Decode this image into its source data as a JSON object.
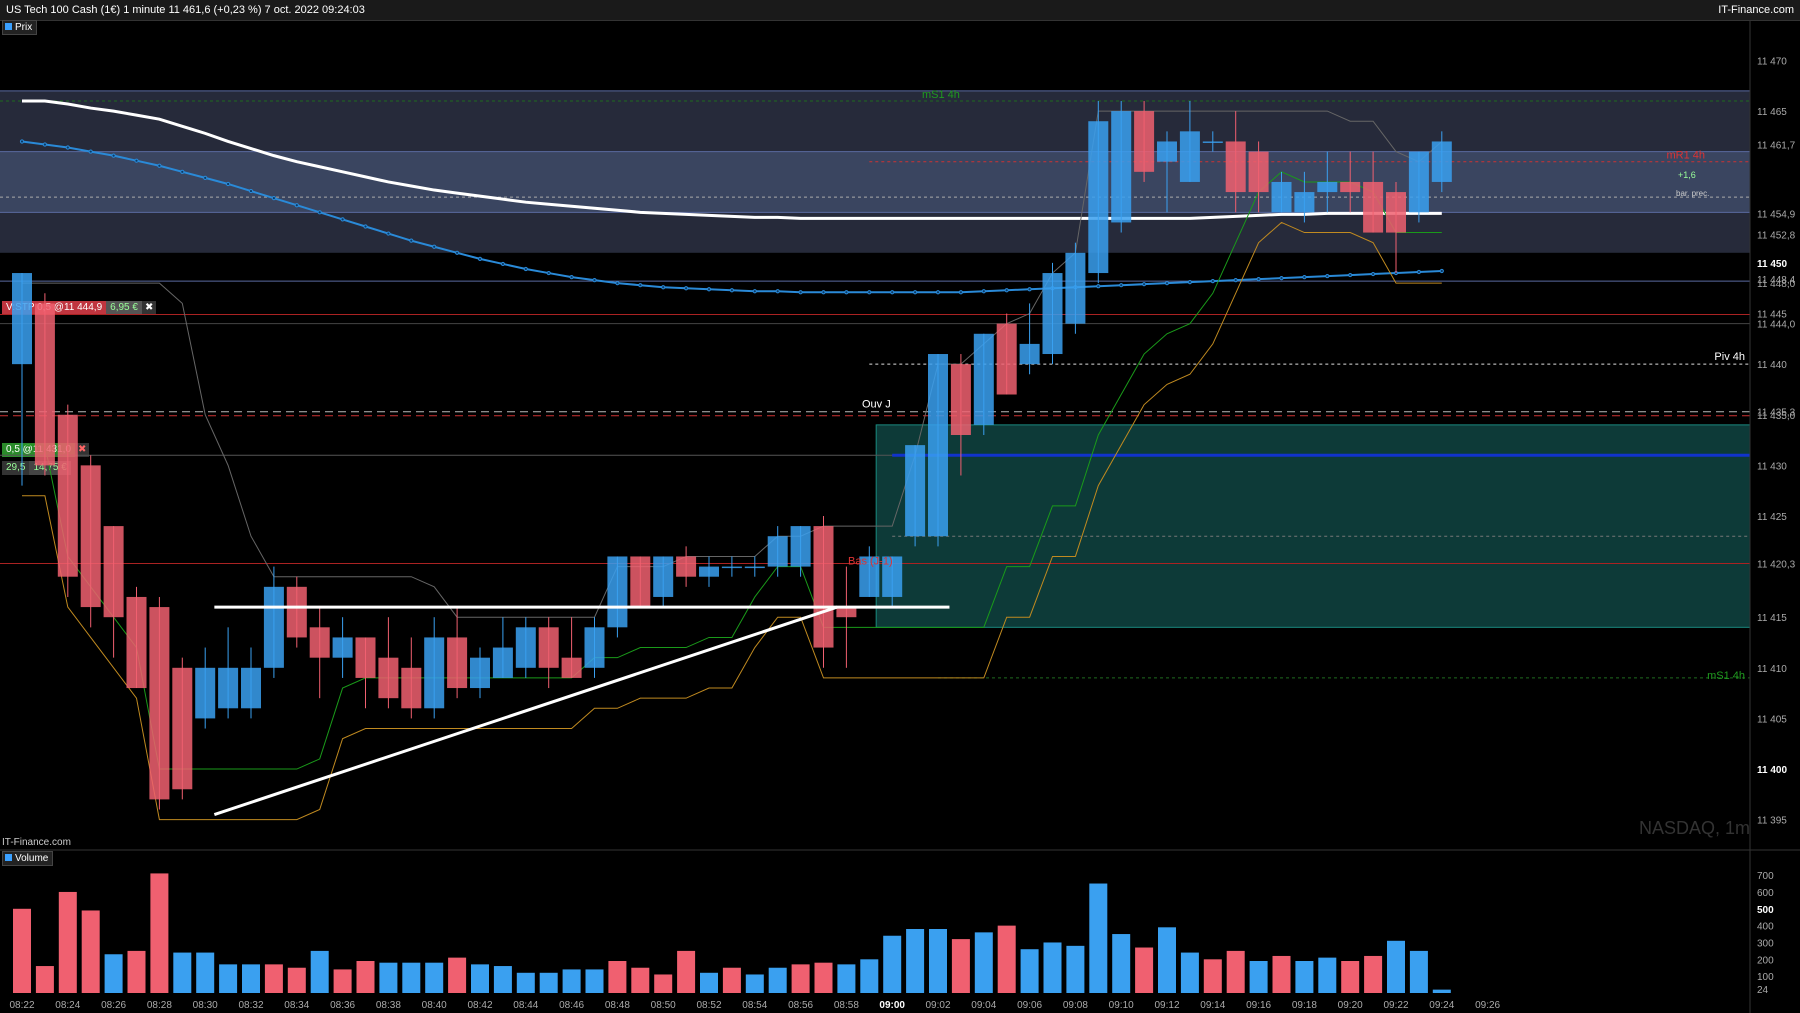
{
  "header": {
    "title": "US Tech 100 Cash (1€) 1 minute 11 461,6 (+0,23 %) 7 oct. 2022 09:24:03",
    "brand": "IT-Finance.com"
  },
  "price_panel": {
    "label": "Prix"
  },
  "volume_panel": {
    "label": "Volume"
  },
  "watermark": "NASDAQ, 1m",
  "footer_brand": "IT-Finance.com",
  "orders": {
    "stop": {
      "label": "V:STP 0,5 @11 444,9",
      "value": "6,95 €"
    },
    "entry": {
      "label": "0,5 @11 431,0",
      "sub1": "29,5",
      "sub2": "14,75 €"
    }
  },
  "annotations": {
    "ms1_top": "mS1 4h",
    "mr1": "mR1 4h",
    "piv": "Piv 4h",
    "ouv": "Ouv J",
    "bas": "Bas (J-1)",
    "ms1_bottom": "mS1 4h",
    "change": "+1,6",
    "prev": "bar. prec."
  },
  "colors": {
    "up": "#3aa0f0",
    "down": "#f06070",
    "band": "#3a4560",
    "teal": "#0d3a38",
    "grid": "#1c1c1c"
  },
  "chart_data": {
    "type": "candlestick",
    "ylim": [
      11392,
      11474
    ],
    "y_ticks": [
      "11 395",
      "11 400",
      "11 405",
      "11 410",
      "11 415",
      "11 420,3",
      "11 425",
      "11 430",
      "11 435,0",
      "11 435,3",
      "11 440",
      "11 444,0",
      "11 445",
      "11 448,0",
      "11 448,4",
      "11 450",
      "11 452,8",
      "11 454,9",
      "11 461,7",
      "11 465",
      "11 470"
    ],
    "y_tick_values": [
      11395,
      11400,
      11405,
      11410,
      11415,
      11420.3,
      11425,
      11430,
      11435.0,
      11435.3,
      11440,
      11444.0,
      11445,
      11448.0,
      11448.4,
      11450,
      11452.8,
      11454.9,
      11461.7,
      11465,
      11470
    ],
    "x_ticks": [
      "08:22",
      "08:24",
      "08:26",
      "08:28",
      "08:30",
      "08:32",
      "08:34",
      "08:36",
      "08:38",
      "08:40",
      "08:42",
      "08:44",
      "08:46",
      "08:48",
      "08:50",
      "08:52",
      "08:54",
      "08:56",
      "08:58",
      "09:00",
      "09:02",
      "09:04",
      "09:06",
      "09:08",
      "09:10",
      "09:12",
      "09:14",
      "09:16",
      "09:18",
      "09:20",
      "09:22",
      "09:24",
      "09:26"
    ],
    "candles": [
      {
        "t": "08:22",
        "o": 11440,
        "h": 11449,
        "l": 11428,
        "c": 11449
      },
      {
        "t": "08:23",
        "o": 11446,
        "h": 11447,
        "l": 11429,
        "c": 11430
      },
      {
        "t": "08:24",
        "o": 11435,
        "h": 11436,
        "l": 11417,
        "c": 11419
      },
      {
        "t": "08:25",
        "o": 11430,
        "h": 11431,
        "l": 11414,
        "c": 11416
      },
      {
        "t": "08:26",
        "o": 11424,
        "h": 11424,
        "l": 11411,
        "c": 11415
      },
      {
        "t": "08:27",
        "o": 11417,
        "h": 11418,
        "l": 11408,
        "c": 11408
      },
      {
        "t": "08:28",
        "o": 11416,
        "h": 11417,
        "l": 11396,
        "c": 11397
      },
      {
        "t": "08:29",
        "o": 11410,
        "h": 11411,
        "l": 11397,
        "c": 11398
      },
      {
        "t": "08:30",
        "o": 11405,
        "h": 11412,
        "l": 11404,
        "c": 11410
      },
      {
        "t": "08:31",
        "o": 11406,
        "h": 11414,
        "l": 11405,
        "c": 11410
      },
      {
        "t": "08:32",
        "o": 11406,
        "h": 11412,
        "l": 11405,
        "c": 11410
      },
      {
        "t": "08:33",
        "o": 11410,
        "h": 11420,
        "l": 11409,
        "c": 11418
      },
      {
        "t": "08:34",
        "o": 11418,
        "h": 11419,
        "l": 11412,
        "c": 11413
      },
      {
        "t": "08:35",
        "o": 11414,
        "h": 11416,
        "l": 11407,
        "c": 11411
      },
      {
        "t": "08:36",
        "o": 11411,
        "h": 11415,
        "l": 11409,
        "c": 11413
      },
      {
        "t": "08:37",
        "o": 11413,
        "h": 11413,
        "l": 11406,
        "c": 11409
      },
      {
        "t": "08:38",
        "o": 11411,
        "h": 11415,
        "l": 11406,
        "c": 11407
      },
      {
        "t": "08:39",
        "o": 11410,
        "h": 11413,
        "l": 11405,
        "c": 11406
      },
      {
        "t": "08:40",
        "o": 11406,
        "h": 11415,
        "l": 11405,
        "c": 11413
      },
      {
        "t": "08:41",
        "o": 11413,
        "h": 11416,
        "l": 11407,
        "c": 11408
      },
      {
        "t": "08:42",
        "o": 11408,
        "h": 11412,
        "l": 11407,
        "c": 11411
      },
      {
        "t": "08:43",
        "o": 11409,
        "h": 11415,
        "l": 11409,
        "c": 11412
      },
      {
        "t": "08:44",
        "o": 11410,
        "h": 11415,
        "l": 11409,
        "c": 11414
      },
      {
        "t": "08:45",
        "o": 11414,
        "h": 11415,
        "l": 11408,
        "c": 11410
      },
      {
        "t": "08:46",
        "o": 11411,
        "h": 11415,
        "l": 11409,
        "c": 11409
      },
      {
        "t": "08:47",
        "o": 11410,
        "h": 11415,
        "l": 11409,
        "c": 11414
      },
      {
        "t": "08:48",
        "o": 11414,
        "h": 11421,
        "l": 11413,
        "c": 11421
      },
      {
        "t": "08:49",
        "o": 11421,
        "h": 11421,
        "l": 11416,
        "c": 11416
      },
      {
        "t": "08:50",
        "o": 11417,
        "h": 11421,
        "l": 11416,
        "c": 11421
      },
      {
        "t": "08:51",
        "o": 11421,
        "h": 11422,
        "l": 11418,
        "c": 11419
      },
      {
        "t": "08:52",
        "o": 11419,
        "h": 11421,
        "l": 11418,
        "c": 11420
      },
      {
        "t": "08:53",
        "o": 11420,
        "h": 11421,
        "l": 11419,
        "c": 11420
      },
      {
        "t": "08:54",
        "o": 11420,
        "h": 11421,
        "l": 11419,
        "c": 11420
      },
      {
        "t": "08:55",
        "o": 11420,
        "h": 11424,
        "l": 11419,
        "c": 11423
      },
      {
        "t": "08:56",
        "o": 11420,
        "h": 11424,
        "l": 11419,
        "c": 11424
      },
      {
        "t": "08:57",
        "o": 11424,
        "h": 11425,
        "l": 11410,
        "c": 11412
      },
      {
        "t": "08:58",
        "o": 11416,
        "h": 11420,
        "l": 11410,
        "c": 11415
      },
      {
        "t": "08:59",
        "o": 11417,
        "h": 11422,
        "l": 11417,
        "c": 11421
      },
      {
        "t": "09:00",
        "o": 11417,
        "h": 11421,
        "l": 11416,
        "c": 11421
      },
      {
        "t": "09:01",
        "o": 11423,
        "h": 11432,
        "l": 11422,
        "c": 11432
      },
      {
        "t": "09:02",
        "o": 11423,
        "h": 11441,
        "l": 11422,
        "c": 11441
      },
      {
        "t": "09:03",
        "o": 11440,
        "h": 11441,
        "l": 11429,
        "c": 11433
      },
      {
        "t": "09:04",
        "o": 11434,
        "h": 11443,
        "l": 11433,
        "c": 11443
      },
      {
        "t": "09:05",
        "o": 11444,
        "h": 11445,
        "l": 11437,
        "c": 11437
      },
      {
        "t": "09:06",
        "o": 11440,
        "h": 11446,
        "l": 11439,
        "c": 11442
      },
      {
        "t": "09:07",
        "o": 11441,
        "h": 11450,
        "l": 11440,
        "c": 11449
      },
      {
        "t": "09:08",
        "o": 11444,
        "h": 11452,
        "l": 11443,
        "c": 11451
      },
      {
        "t": "09:09",
        "o": 11449,
        "h": 11466,
        "l": 11448,
        "c": 11464
      },
      {
        "t": "09:10",
        "o": 11454,
        "h": 11466,
        "l": 11453,
        "c": 11465
      },
      {
        "t": "09:11",
        "o": 11465,
        "h": 11466,
        "l": 11458,
        "c": 11459
      },
      {
        "t": "09:12",
        "o": 11460,
        "h": 11463,
        "l": 11455,
        "c": 11462
      },
      {
        "t": "09:13",
        "o": 11458,
        "h": 11466,
        "l": 11458,
        "c": 11463
      },
      {
        "t": "09:14",
        "o": 11462,
        "h": 11463,
        "l": 11461,
        "c": 11462
      },
      {
        "t": "09:15",
        "o": 11462,
        "h": 11465,
        "l": 11455,
        "c": 11457
      },
      {
        "t": "09:16",
        "o": 11461,
        "h": 11462,
        "l": 11455,
        "c": 11457
      },
      {
        "t": "09:17",
        "o": 11455,
        "h": 11459,
        "l": 11455,
        "c": 11458
      },
      {
        "t": "09:18",
        "o": 11455,
        "h": 11459,
        "l": 11454,
        "c": 11457
      },
      {
        "t": "09:19",
        "o": 11457,
        "h": 11461,
        "l": 11455,
        "c": 11458
      },
      {
        "t": "09:20",
        "o": 11458,
        "h": 11461,
        "l": 11455,
        "c": 11457
      },
      {
        "t": "09:21",
        "o": 11458,
        "h": 11461,
        "l": 11453,
        "c": 11453
      },
      {
        "t": "09:22",
        "o": 11457,
        "h": 11458,
        "l": 11449,
        "c": 11453
      },
      {
        "t": "09:23",
        "o": 11455,
        "h": 11461,
        "l": 11454,
        "c": 11461
      },
      {
        "t": "09:24",
        "o": 11458,
        "h": 11463,
        "l": 11457,
        "c": 11462
      }
    ],
    "volume": {
      "ylim": [
        0,
        760
      ],
      "y_ticks": [
        "24",
        "100",
        "200",
        "300",
        "400",
        "500",
        "600",
        "700"
      ],
      "y_tick_values": [
        24,
        100,
        200,
        300,
        400,
        500,
        600,
        700
      ],
      "values": [
        500,
        160,
        600,
        490,
        230,
        250,
        710,
        240,
        240,
        170,
        170,
        170,
        150,
        250,
        140,
        190,
        180,
        180,
        180,
        210,
        170,
        160,
        120,
        120,
        140,
        140,
        190,
        150,
        110,
        250,
        120,
        150,
        110,
        150,
        170,
        180,
        170,
        200,
        340,
        380,
        380,
        320,
        360,
        400,
        260,
        300,
        280,
        650,
        350,
        270,
        390,
        240,
        200,
        250,
        190,
        220,
        190,
        210,
        190,
        220,
        310,
        250,
        20
      ],
      "directions": [
        "down",
        "down",
        "down",
        "down",
        "up",
        "down",
        "down",
        "up",
        "up",
        "up",
        "up",
        "down",
        "down",
        "up",
        "down",
        "down",
        "up",
        "up",
        "up",
        "down",
        "up",
        "up",
        "up",
        "up",
        "up",
        "up",
        "down",
        "down",
        "down",
        "down",
        "up",
        "down",
        "up",
        "up",
        "down",
        "down",
        "up",
        "up",
        "up",
        "up",
        "up",
        "down",
        "up",
        "down",
        "up",
        "up",
        "up",
        "up",
        "up",
        "down",
        "up",
        "up",
        "down",
        "down",
        "up",
        "down",
        "up",
        "up",
        "down",
        "down",
        "up",
        "up",
        "up"
      ]
    },
    "series": [
      {
        "name": "",
        "color": "#ffffff",
        "values": [
          11466,
          11466,
          11465.7,
          11465.3,
          11465,
          11464.6,
          11464.2,
          11463.5,
          11462.8,
          11462,
          11461.3,
          11460.6,
          11460,
          11459.5,
          11459,
          11458.5,
          11458,
          11457.6,
          11457.2,
          11456.9,
          11456.6,
          11456.3,
          11456,
          11455.8,
          11455.6,
          11455.4,
          11455.2,
          11455,
          11454.9,
          11454.8,
          11454.7,
          11454.6,
          11454.5,
          11454.5,
          11454.4,
          11454.4,
          11454.4,
          11454.4,
          11454.4,
          11454.4,
          11454.4,
          11454.4,
          11454.4,
          11454.4,
          11454.4,
          11454.4,
          11454.4,
          11454.4,
          11454.4,
          11454.4,
          11454.4,
          11454.4,
          11454.5,
          11454.6,
          11454.7,
          11454.8,
          11454.8,
          11454.9,
          11454.9,
          11454.9,
          11454.9,
          11454.9,
          11454.9
        ]
      },
      {
        "name": "",
        "color": "#2a8ad8",
        "values": [
          11462,
          11461.7,
          11461.4,
          11461,
          11460.6,
          11460.1,
          11459.6,
          11459,
          11458.4,
          11457.8,
          11457.1,
          11456.4,
          11455.7,
          11455,
          11454.3,
          11453.6,
          11452.9,
          11452.2,
          11451.6,
          11451,
          11450.4,
          11449.9,
          11449.4,
          11449,
          11448.6,
          11448.3,
          11448,
          11447.8,
          11447.6,
          11447.5,
          11447.4,
          11447.3,
          11447.2,
          11447.2,
          11447.1,
          11447.1,
          11447.1,
          11447.1,
          11447.1,
          11447.1,
          11447.1,
          11447.1,
          11447.2,
          11447.3,
          11447.4,
          11447.5,
          11447.6,
          11447.7,
          11447.8,
          11447.9,
          11448,
          11448.1,
          11448.2,
          11448.3,
          11448.4,
          11448.5,
          11448.6,
          11448.7,
          11448.8,
          11448.9,
          11449,
          11449.1,
          11449.2
        ]
      }
    ],
    "levels": {
      "mS1_4h_top": 11466,
      "mR1_4h": 11460,
      "Piv_4h": 11440,
      "Ouv_J": 11435.3,
      "Bas_J1": 11420.3,
      "mS1_4h_bottom": 11409,
      "stop": 11444.9,
      "entry": 11431.0
    }
  }
}
